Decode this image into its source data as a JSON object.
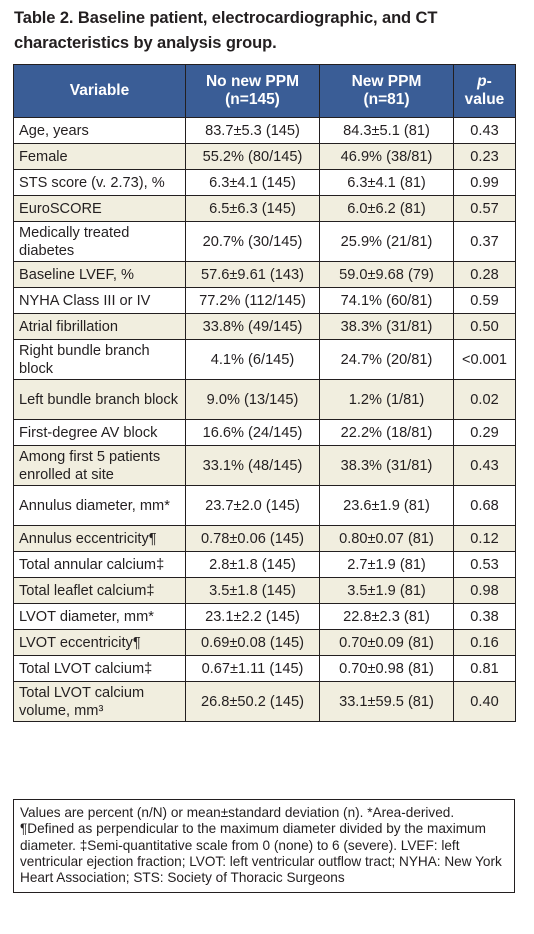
{
  "title": "Table 2. Baseline patient, electrocardiographic, and CT characteristics by analysis group.",
  "columns": {
    "variable": "Variable",
    "group1_name": "No new PPM",
    "group1_n": "(n=145)",
    "group2_name": "New PPM",
    "group2_n": "(n=81)",
    "p_italic": "p",
    "p_rest": "-value"
  },
  "rows": [
    {
      "variable": "Age, years",
      "no_new": "83.7±5.3 (145)",
      "new": "84.3±5.1 (81)",
      "p": "0.43"
    },
    {
      "variable": "Female",
      "no_new": "55.2% (80/145)",
      "new": "46.9% (38/81)",
      "p": "0.23"
    },
    {
      "variable": "STS score (v. 2.73), %",
      "no_new": "6.3±4.1 (145)",
      "new": "6.3±4.1 (81)",
      "p": "0.99"
    },
    {
      "variable": "EuroSCORE",
      "no_new": "6.5±6.3 (145)",
      "new": "6.0±6.2 (81)",
      "p": "0.57"
    },
    {
      "variable": "Medically treated diabetes",
      "no_new": "20.7% (30/145)",
      "new": "25.9% (21/81)",
      "p": "0.37"
    },
    {
      "variable": "Baseline LVEF, %",
      "no_new": "57.6±9.61 (143)",
      "new": "59.0±9.68 (79)",
      "p": "0.28"
    },
    {
      "variable": "NYHA Class III or IV",
      "no_new": "77.2% (112/145)",
      "new": "74.1% (60/81)",
      "p": "0.59"
    },
    {
      "variable": "Atrial fibrillation",
      "no_new": "33.8% (49/145)",
      "new": "38.3% (31/81)",
      "p": "0.50"
    },
    {
      "variable": "Right bundle branch block",
      "no_new": "4.1% (6/145)",
      "new": "24.7% (20/81)",
      "p": "<0.001"
    },
    {
      "variable": "Left bundle branch block",
      "no_new": "9.0% (13/145)",
      "new": "1.2% (1/81)",
      "p": "0.02"
    },
    {
      "variable": "First-degree AV block",
      "no_new": "16.6% (24/145)",
      "new": "22.2% (18/81)",
      "p": "0.29"
    },
    {
      "variable": "Among first 5 patients enrolled at site",
      "no_new": "33.1% (48/145)",
      "new": "38.3% (31/81)",
      "p": "0.43"
    },
    {
      "variable": "Annulus diameter, mm*",
      "no_new": "23.7±2.0 (145)",
      "new": "23.6±1.9 (81)",
      "p": "0.68"
    },
    {
      "variable": "Annulus eccentricity¶",
      "no_new": "0.78±0.06 (145)",
      "new": "0.80±0.07 (81)",
      "p": "0.12"
    },
    {
      "variable": "Total annular calcium‡",
      "no_new": "2.8±1.8 (145)",
      "new": "2.7±1.9 (81)",
      "p": "0.53"
    },
    {
      "variable": "Total leaflet calcium‡",
      "no_new": "3.5±1.8 (145)",
      "new": "3.5±1.9 (81)",
      "p": "0.98"
    },
    {
      "variable": "LVOT diameter, mm*",
      "no_new": "23.1±2.2 (145)",
      "new": "22.8±2.3 (81)",
      "p": "0.38"
    },
    {
      "variable": "LVOT eccentricity¶",
      "no_new": "0.69±0.08 (145)",
      "new": "0.70±0.09 (81)",
      "p": "0.16"
    },
    {
      "variable": "Total LVOT calcium‡",
      "no_new": "0.67±1.11 (145)",
      "new": "0.70±0.98 (81)",
      "p": "0.81"
    },
    {
      "variable": "Total LVOT calcium volume, mm³",
      "no_new": "26.8±50.2 (145)",
      "new": "33.1±59.5 (81)",
      "p": "0.40"
    }
  ],
  "footnote": "Values are percent (n/N) or mean±standard deviation (n). *Area-derived. ¶Defined as perpendicular to the maximum diameter divided by the maximum diameter. ‡Semi-quantitative scale from 0 (none) to 6 (severe). LVEF: left ventricular ejection fraction; LVOT: left ventricular outflow tract; NYHA: New York Heart Association; STS: Society of Thoracic Surgeons"
}
